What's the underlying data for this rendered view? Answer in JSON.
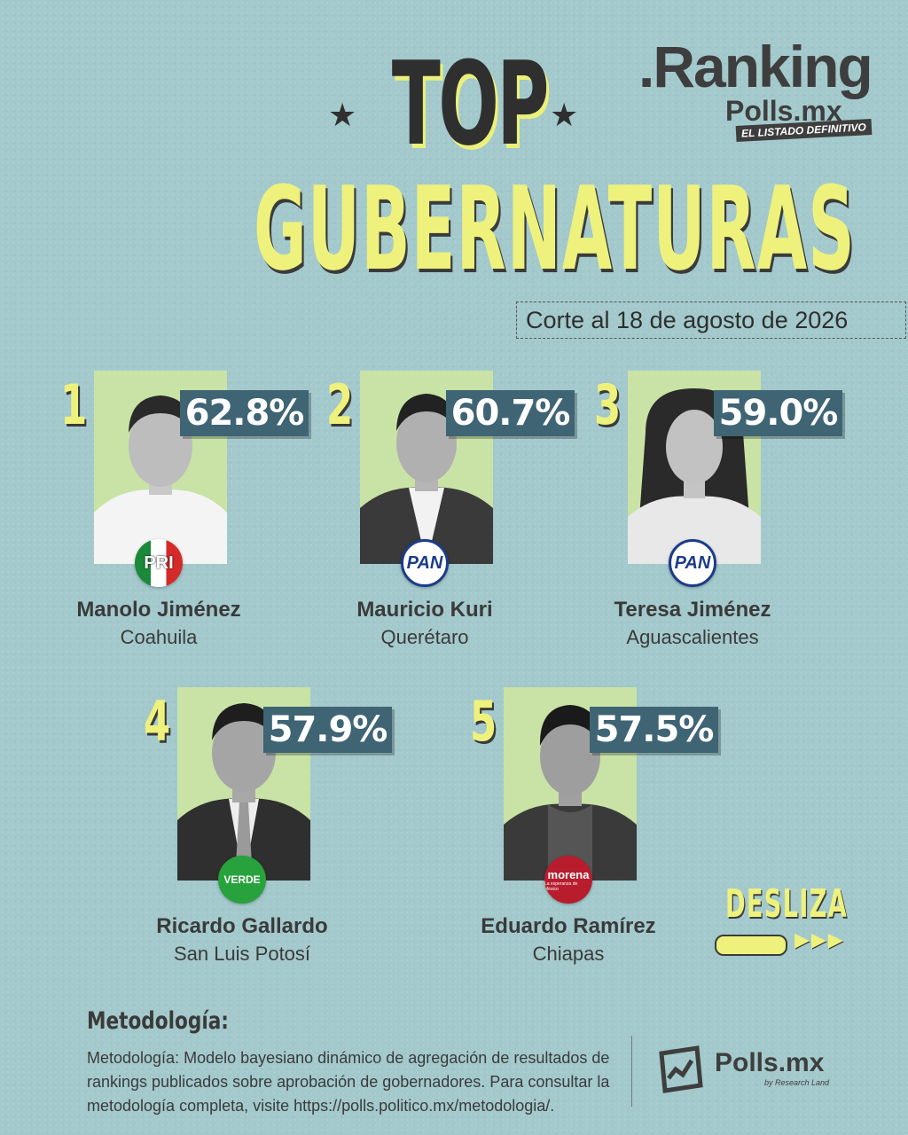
{
  "header": {
    "title_top": "TOP",
    "title_main": "GUBERNATURAS",
    "star": "★",
    "date": "Corte al 18 de agosto de 2026"
  },
  "logo": {
    "ranking": ".Ranking",
    "polls": "Polls.mx",
    "tagline": "EL LISTADO DEFINITIVO"
  },
  "candidates": [
    {
      "rank": "1",
      "name": "Manolo Jiménez",
      "state": "Coahuila",
      "approval": "62.8%",
      "party": "PRI"
    },
    {
      "rank": "2",
      "name": "Mauricio Kuri",
      "state": "Querétaro",
      "approval": "60.7%",
      "party": "PAN"
    },
    {
      "rank": "3",
      "name": "Teresa Jiménez",
      "state": "Aguascalientes",
      "approval": "59.0%",
      "party": "PAN"
    },
    {
      "rank": "4",
      "name": "Ricardo Gallardo",
      "state": "San Luis Potosí",
      "approval": "57.9%",
      "party": "VERDE"
    },
    {
      "rank": "5",
      "name": "Eduardo Ramírez",
      "state": "Chiapas",
      "approval": "57.5%",
      "party": "morena"
    }
  ],
  "badges": {
    "pri": "PRI",
    "pan": "PAN",
    "verde": "VERDE",
    "morena": "morena",
    "morena_sub": "La esperanza de México"
  },
  "swipe": {
    "label": "DESLIZA",
    "arrows": "▶▶▶"
  },
  "methodology": {
    "title": "Metodología:",
    "text": "Metodología: Modelo bayesiano dinámico de agregación de resultados de rankings publicados sobre aprobación de gobernadores. Para consultar la metodología completa, visite https://polls.politico.mx/metodologia/."
  },
  "footer_logo": {
    "name": "Polls.mx",
    "sub": "by Research Land"
  },
  "colors": {
    "background": "#a3c9cc",
    "title_yellow": "#eef27c",
    "pct_box": "#3f6474",
    "photo_bg": "#c8e3a5"
  }
}
